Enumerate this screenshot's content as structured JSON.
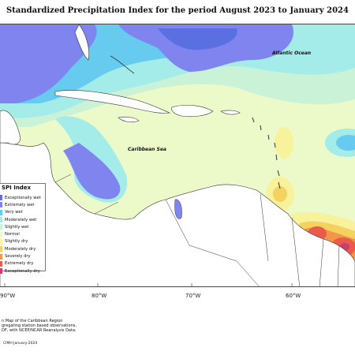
{
  "title": "Standardized Precipitation Index for the period August 2023 to January 2024",
  "ocean_labels": {
    "atlantic": "Atlantic Ocean",
    "caribbean": "Caribbean Sea"
  },
  "legend": {
    "title": "SPI Index",
    "items": [
      {
        "label": "Exceptionally wet",
        "color": "#5a6fe0"
      },
      {
        "label": "Extremely wet",
        "color": "#7f84ee"
      },
      {
        "label": "Very wet",
        "color": "#66cbef"
      },
      {
        "label": "Moderately wet",
        "color": "#a3ecea"
      },
      {
        "label": "Slightly wet",
        "color": "#c9f2d6"
      },
      {
        "label": "Normal",
        "color": "#ecf9c9"
      },
      {
        "label": "Slightly dry",
        "color": "#f9f29c"
      },
      {
        "label": "Moderately dry",
        "color": "#f5d15f"
      },
      {
        "label": "Severely dry",
        "color": "#f2964b"
      },
      {
        "label": "Extremely dry",
        "color": "#ea5b49"
      },
      {
        "label": "Exceptionally dry",
        "color": "#c83f72"
      }
    ]
  },
  "longitude_labels": [
    "90°W",
    "80°W",
    "70°W",
    "60°W"
  ],
  "footnote": [
    "n Map of the Caribbean Region",
    "gregating station based observations,",
    "DF, with NCEP/NCAR Reanalysis Data."
  ],
  "credit": "CIMH January-2024"
}
